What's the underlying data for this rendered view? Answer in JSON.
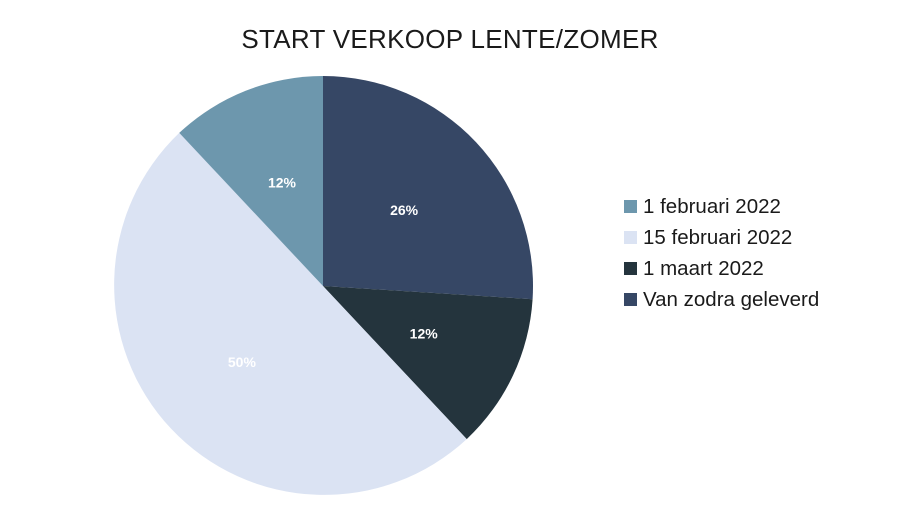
{
  "chart_data": {
    "type": "pie",
    "title": "START VERKOOP LENTE/ZOMER",
    "categories": [
      "1 februari 2022",
      "15 februari 2022",
      "1 maart 2022",
      "Van zodra geleverd"
    ],
    "values": [
      12,
      50,
      12,
      26
    ],
    "data_labels": [
      "12%",
      "50%",
      "12%",
      "26%"
    ],
    "colors": [
      "#6d97ad",
      "#dbe3f3",
      "#24343d",
      "#364765"
    ],
    "legend_position": "right"
  }
}
